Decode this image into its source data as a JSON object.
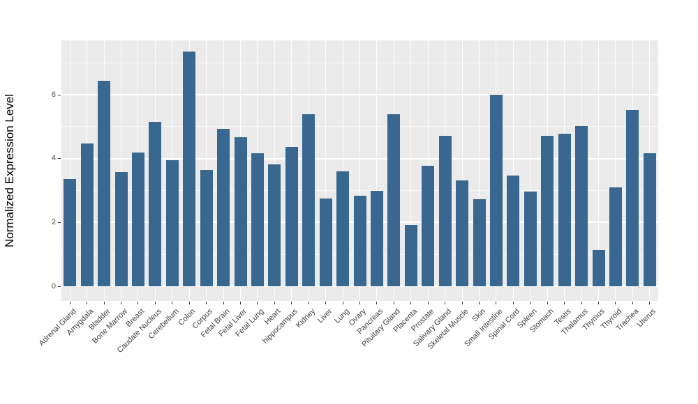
{
  "chart_data": {
    "type": "bar",
    "title": "",
    "xlabel": "",
    "ylabel": "Normalized Expression Level",
    "categories": [
      "Adrenal Gland",
      "Amygdala",
      "Bladder",
      "Bone Marrow",
      "Breast",
      "Caudate Nucleus",
      "Cerebellum",
      "Colon",
      "Corpus",
      "Fetal Brain",
      "Fetal Liver",
      "Fetal Lung",
      "Heart",
      "hippocampus",
      "Kidney",
      "Liver",
      "Lung",
      "Ovary",
      "Pancreas",
      "Pituitary Gland",
      "Placenta",
      "Prostate",
      "Salivary Gland",
      "Skeletal Muscle",
      "Skin",
      "Small Intestine",
      "Spinal Cord",
      "Spleen",
      "Stomach",
      "Testis",
      "Thalamus",
      "Thymus",
      "Thyroid",
      "Trachea",
      "Uterus"
    ],
    "values": [
      3.37,
      4.47,
      6.43,
      3.58,
      4.18,
      5.14,
      3.96,
      7.36,
      3.65,
      4.94,
      4.66,
      4.17,
      3.81,
      4.37,
      5.39,
      2.76,
      3.61,
      2.83,
      3.0,
      5.38,
      1.92,
      3.77,
      4.72,
      3.31,
      2.72,
      5.99,
      3.48,
      2.96,
      4.72,
      4.77,
      5.01,
      1.14,
      3.09,
      5.53,
      4.17
    ],
    "yticks": [
      0,
      2,
      4,
      6
    ],
    "minor_gridlines": [
      1,
      3,
      5,
      7
    ],
    "ylim": [
      0,
      7.7
    ],
    "grid": "on",
    "legend_position": "none",
    "colors": {
      "bar": "#38678F",
      "panel_background": "#EBEBEB",
      "major_grid": "#FFFFFF",
      "minor_grid": "#F5F5F5",
      "tick_text": "#4D4D4D",
      "axis_title": "#000000",
      "tick_mark": "#333333",
      "figure_background": "#FFFFFF"
    }
  }
}
